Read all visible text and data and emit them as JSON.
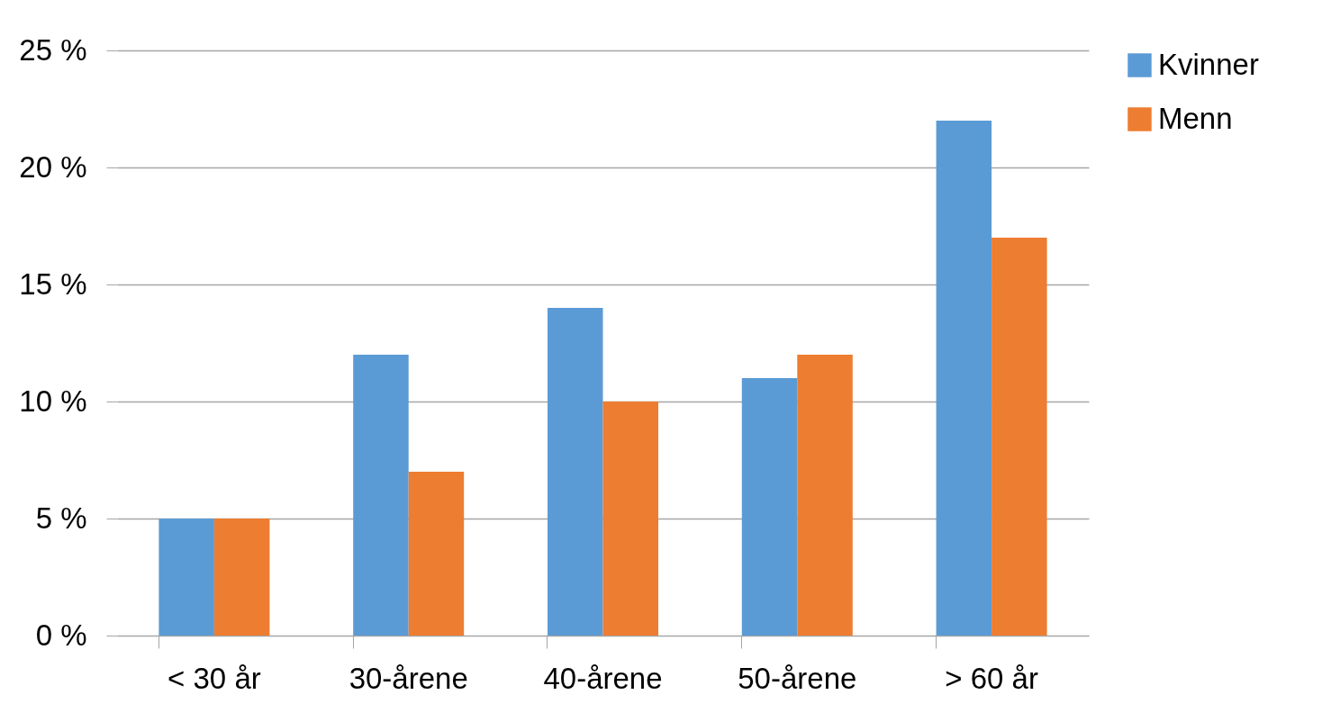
{
  "chart_data": {
    "type": "bar",
    "categories": [
      "< 30 år",
      "30-årene",
      "40-årene",
      "50-årene",
      "> 60 år"
    ],
    "series": [
      {
        "name": "Kvinner",
        "color": "#5b9bd5",
        "values": [
          5,
          12,
          14,
          11,
          22
        ]
      },
      {
        "name": "Menn",
        "color": "#ed7d31",
        "values": [
          5,
          7,
          10,
          12,
          17
        ]
      }
    ],
    "ylim": [
      0,
      25
    ],
    "yticks": [
      {
        "value": 0,
        "label": "0 %"
      },
      {
        "value": 5,
        "label": "5 %"
      },
      {
        "value": 10,
        "label": "10 %"
      },
      {
        "value": 15,
        "label": "15 %"
      },
      {
        "value": 20,
        "label": "20 %"
      },
      {
        "value": 25,
        "label": "25 %"
      }
    ],
    "grid": "y",
    "legend": "right"
  }
}
